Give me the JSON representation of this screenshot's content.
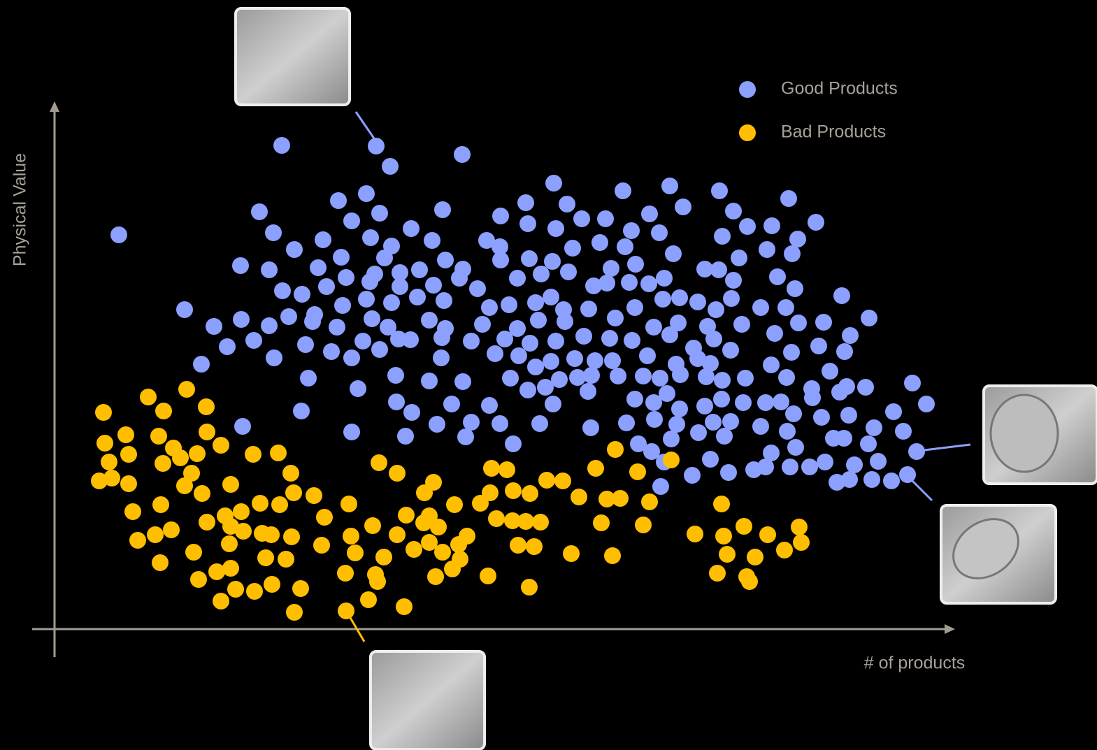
{
  "chart_data": {
    "type": "scatter",
    "x_label": "# of products",
    "y_label": "Physical Value",
    "xlim": [
      0,
      1287
    ],
    "ylim": [
      0,
      755
    ],
    "legend": "top-right",
    "series": [
      {
        "name": "Good Products",
        "color": "#8ca0ff",
        "x": [
          325,
          460,
          480,
          583,
          92,
          714,
          813,
          880,
          951,
          1050,
          406,
          446,
          465,
          555,
          674,
          733,
          899,
          971,
          293,
          425,
          510,
          638,
          677,
          717,
          754,
          788,
          851,
          991,
          1026,
          1089,
          313,
          384,
          452,
          482,
          540,
          618,
          637,
          780,
          825,
          865,
          955,
          1063,
          343,
          410,
          472,
          559,
          679,
          712,
          741,
          816,
          885,
          1019,
          1055,
          266,
          307,
          377,
          417,
          458,
          494,
          522,
          584,
          638,
          735,
          796,
          831,
          930,
          950,
          979,
          326,
          354,
          389,
          451,
          494,
          542,
          579,
          605,
          662,
          696,
          771,
          790,
          822,
          850,
          872,
          971,
          1034,
          1059,
          1126,
          186,
          267,
          335,
          372,
          412,
          446,
          482,
          519,
          557,
          622,
          650,
          688,
          710,
          728,
          764,
          802,
          830,
          870,
          894,
          920,
          946,
          968,
          1010,
          1046,
          1064,
          1100,
          1165,
          228,
          307,
          369,
          404,
          454,
          477,
          536,
          559,
          612,
          662,
          692,
          730,
          857,
          892,
          934,
          983,
          1030,
          1138,
          247,
          285,
          359,
          396,
          441,
          465,
          492,
          509,
          554,
          596,
          644,
          680,
          717,
          757,
          794,
          826,
          880,
          914,
          943,
          967,
          1054,
          1093,
          1130,
          210,
          314,
          425,
          553,
          630,
          664,
          688,
          710,
          744,
          773,
          798,
          848,
          889,
          920,
          938,
          1025,
          1109,
          363,
          488,
          536,
          584,
          652,
          677,
          702,
          722,
          748,
          768,
          806,
          842,
          866,
          895,
          932,
          955,
          988,
          1047,
          1083,
          1133,
          1160,
          1227,
          434,
          763,
          830,
          876,
          985,
          1084,
          1123,
          1247,
          353,
          489,
          511,
          568,
          622,
          713,
          857,
          894,
          930,
          954,
          1017,
          1039,
          1057,
          1097,
          1136,
          1200,
          269,
          425,
          547,
          596,
          637,
          694,
          767,
          818,
          858,
          890,
          921,
          942,
          967,
          1010,
          1048,
          1172,
          1214,
          502,
          588,
          882,
          958,
          1114,
          1129,
          656,
          835,
          854,
          1060,
          1164,
          1233,
          872,
          938,
          1025,
          1102,
          1144,
          1178,
          912,
          964,
          1000,
          1017,
          1052,
          1080,
          1119,
          1137,
          1169,
          1197,
          1220,
          867
        ],
        "values": [
          692,
          691,
          662,
          679,
          564,
          638,
          627,
          634,
          627,
          616,
          613,
          623,
          595,
          600,
          610,
          608,
          604,
          598,
          597,
          584,
          573,
          591,
          580,
          573,
          587,
          587,
          594,
          576,
          577,
          582,
          567,
          557,
          560,
          548,
          556,
          556,
          547,
          553,
          570,
          567,
          562,
          558,
          543,
          532,
          531,
          528,
          530,
          526,
          545,
          547,
          537,
          543,
          537,
          520,
          514,
          517,
          503,
          508,
          510,
          514,
          515,
          528,
          511,
          516,
          522,
          515,
          514,
          531,
          484,
          479,
          490,
          497,
          490,
          492,
          502,
          487,
          502,
          508,
          491,
          495,
          496,
          494,
          502,
          499,
          504,
          487,
          477,
          457,
          443,
          447,
          450,
          463,
          472,
          467,
          475,
          470,
          460,
          464,
          467,
          475,
          457,
          458,
          445,
          460,
          472,
          474,
          468,
          457,
          473,
          460,
          460,
          438,
          439,
          445,
          433,
          434,
          440,
          432,
          444,
          432,
          442,
          430,
          436,
          430,
          442,
          440,
          432,
          438,
          433,
          436,
          423,
          420,
          404,
          413,
          407,
          397,
          412,
          400,
          415,
          414,
          417,
          412,
          415,
          409,
          412,
          419,
          416,
          413,
          421,
          402,
          415,
          399,
          396,
          405,
          397,
          379,
          388,
          388,
          388,
          394,
          391,
          375,
          383,
          387,
          384,
          384,
          391,
          379,
          387,
          380,
          378,
          369,
          359,
          363,
          355,
          354,
          359,
          342,
          346,
          357,
          360,
          363,
          362,
          362,
          359,
          364,
          361,
          356,
          359,
          360,
          344,
          347,
          346,
          352,
          344,
          340,
          329,
          337,
          324,
          331,
          339,
          322,
          312,
          325,
          310,
          322,
          320,
          322,
          324,
          315,
          319,
          329,
          324,
          325,
          308,
          303,
          306,
          311,
          290,
          282,
          293,
          296,
          294,
          294,
          288,
          295,
          300,
          293,
          281,
          296,
          297,
          290,
          283,
          288,
          283,
          276,
          275,
          272,
          276,
          273,
          273,
          265,
          265,
          254,
          260,
          265,
          254,
          239,
          243,
          252,
          239,
          235,
          240,
          220,
          224,
          228,
          232,
          232,
          232,
          210,
          214,
          214,
          212,
          221,
          204
        ]
      },
      {
        "name": "Bad Products",
        "color": "#ffbf00",
        "x": [
          189,
          134,
          70,
          156,
          217,
          102,
          149,
          218,
          72,
          170,
          238,
          284,
          320,
          106,
          180,
          204,
          78,
          155,
          196,
          338,
          464,
          490,
          625,
          647,
          774,
          802,
          882,
          834,
          64,
          82,
          106,
          186,
          252,
          211,
          342,
          371,
          529,
          542,
          623,
          656,
          680,
          704,
          727,
          750,
          790,
          809,
          851,
          954,
          112,
          152,
          244,
          267,
          294,
          322,
          421,
          503,
          536,
          572,
          609,
          167,
          218,
          252,
          270,
          297,
          310,
          339,
          386,
          455,
          490,
          528,
          549,
          590,
          632,
          655,
          674,
          695,
          782,
          842,
          986,
          1065,
          119,
          144,
          250,
          382,
          424,
          514,
          536,
          555,
          578,
          663,
          686,
          916,
          957,
          1020,
          1068,
          199,
          302,
          331,
          430,
          471,
          580,
          739,
          798,
          962,
          1002,
          1044,
          151,
          232,
          252,
          416,
          459,
          545,
          569,
          620,
          948,
          990,
          206,
          259,
          286,
          311,
          352,
          462,
          679,
          994,
          238,
          449,
          500,
          343,
          417
        ],
        "values": [
          343,
          332,
          310,
          312,
          318,
          278,
          276,
          282,
          266,
          259,
          263,
          250,
          252,
          250,
          245,
          251,
          239,
          237,
          223,
          223,
          238,
          223,
          230,
          228,
          230,
          257,
          242,
          225,
          212,
          216,
          208,
          205,
          207,
          194,
          195,
          191,
          195,
          210,
          195,
          198,
          194,
          213,
          212,
          189,
          186,
          187,
          182,
          179,
          168,
          178,
          162,
          168,
          180,
          178,
          179,
          163,
          162,
          178,
          180,
          142,
          153,
          147,
          140,
          137,
          135,
          132,
          160,
          148,
          135,
          152,
          146,
          133,
          158,
          155,
          154,
          153,
          152,
          149,
          147,
          146,
          127,
          135,
          122,
          120,
          133,
          114,
          124,
          110,
          121,
          120,
          118,
          136,
          133,
          135,
          124,
          110,
          102,
          100,
          109,
          103,
          100,
          108,
          105,
          107,
          103,
          113,
          95,
          82,
          87,
          80,
          78,
          75,
          86,
          76,
          80,
          75,
          71,
          57,
          54,
          64,
          58,
          68,
          60,
          68,
          40,
          42,
          32,
          24,
          26
        ]
      }
    ]
  }
}
